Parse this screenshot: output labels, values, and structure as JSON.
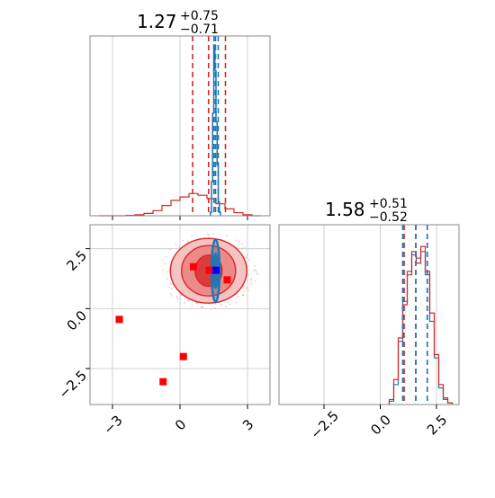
{
  "chart_data": [
    {
      "type": "histogram",
      "panel": "top-left",
      "title": {
        "main": "1.27",
        "sup": "+0.75",
        "sub": "−0.71"
      },
      "xlim": [
        -4,
        4
      ],
      "grid": true,
      "series": [
        {
          "color": "#d62728",
          "bin_edges": [
            -3.6,
            -3.2,
            -2.8,
            -2.4,
            -2.0,
            -1.6,
            -1.2,
            -0.8,
            -0.4,
            0.0,
            0.4,
            0.8,
            1.2,
            1.6,
            2.0,
            2.4,
            2.8,
            3.2,
            3.6
          ],
          "counts": [
            0,
            0,
            0,
            0.002,
            0.006,
            0.014,
            0.03,
            0.06,
            0.09,
            0.11,
            0.13,
            0.12,
            0.1,
            0.07,
            0.04,
            0.018,
            0.006,
            0
          ],
          "quantiles": [
            0.56,
            1.27,
            2.02
          ]
        },
        {
          "color": "#1f77b4",
          "bin_edges": [
            1.35,
            1.4,
            1.45,
            1.5,
            1.55,
            1.6,
            1.65,
            1.7,
            1.75,
            1.8
          ],
          "counts": [
            0.02,
            0.2,
            0.6,
            1.0,
            0.85,
            0.55,
            0.3,
            0.08,
            0.02
          ],
          "quantiles": [
            1.51,
            1.58,
            1.7
          ]
        }
      ]
    },
    {
      "type": "contour-scatter",
      "panel": "bottom-left",
      "xlim": [
        -4,
        4
      ],
      "ylim": [
        -4,
        3.5
      ],
      "xticks": [
        "−3",
        "0",
        "3"
      ],
      "yticks": [
        "2.5",
        "0.0",
        "−2.5"
      ],
      "ytick_values": [
        2.5,
        0.0,
        -2.5
      ],
      "xtick_values": [
        -3,
        0,
        3
      ],
      "grid": true,
      "red_contour_center": [
        1.27,
        1.58
      ],
      "red_contour_levels": [
        {
          "rx": 0.6,
          "ry": 0.65
        },
        {
          "rx": 1.2,
          "ry": 1.05
        },
        {
          "rx": 1.7,
          "ry": 1.35
        }
      ],
      "blue_contour_center": [
        1.58,
        1.58
      ],
      "blue_contour_levels": [
        {
          "rx": 0.1,
          "ry": 0.7
        },
        {
          "rx": 0.18,
          "ry": 1.3
        }
      ],
      "markers_red": [
        [
          -2.7,
          -0.45
        ],
        [
          0.6,
          1.75
        ],
        [
          1.3,
          1.6
        ],
        [
          2.1,
          1.2
        ],
        [
          0.15,
          -2.0
        ],
        [
          -0.75,
          -3.05
        ]
      ],
      "markers_blue": [
        [
          1.6,
          1.6
        ]
      ],
      "colors": {
        "red": "#d62728",
        "blue": "#1f77b4",
        "marker_red": "#ff0000",
        "marker_blue": "#0000ff"
      }
    },
    {
      "type": "histogram",
      "panel": "bottom-right",
      "title": {
        "main": "1.58",
        "sup": "+0.51",
        "sub": "−0.52"
      },
      "xlim": [
        -4.5,
        3.5
      ],
      "xticks": [
        "−2.5",
        "0.0",
        "2.5"
      ],
      "xtick_values": [
        -2.5,
        0.0,
        2.5
      ],
      "grid": true,
      "series": [
        {
          "color": "#d62728",
          "bin_edges": [
            0.4,
            0.6,
            0.8,
            1.0,
            1.2,
            1.4,
            1.6,
            1.8,
            2.0,
            2.2,
            2.4,
            2.6,
            2.8,
            3.0,
            3.2
          ],
          "counts": [
            0.03,
            0.15,
            0.4,
            0.6,
            0.78,
            0.92,
            0.85,
            0.95,
            0.8,
            0.55,
            0.3,
            0.12,
            0.04,
            0.01
          ],
          "quantiles": [
            1.06,
            1.58,
            2.09
          ]
        },
        {
          "color": "#1f77b4",
          "bin_edges": [
            0.4,
            0.6,
            0.8,
            1.0,
            1.2,
            1.4,
            1.6,
            1.8,
            2.0,
            2.2,
            2.4,
            2.6,
            2.8,
            3.0,
            3.2
          ],
          "counts": [
            0.02,
            0.12,
            0.38,
            0.62,
            0.8,
            0.9,
            0.88,
            0.92,
            0.78,
            0.5,
            0.28,
            0.1,
            0.03,
            0.01
          ],
          "quantiles": [
            1.0,
            1.58,
            2.09
          ]
        }
      ]
    }
  ]
}
